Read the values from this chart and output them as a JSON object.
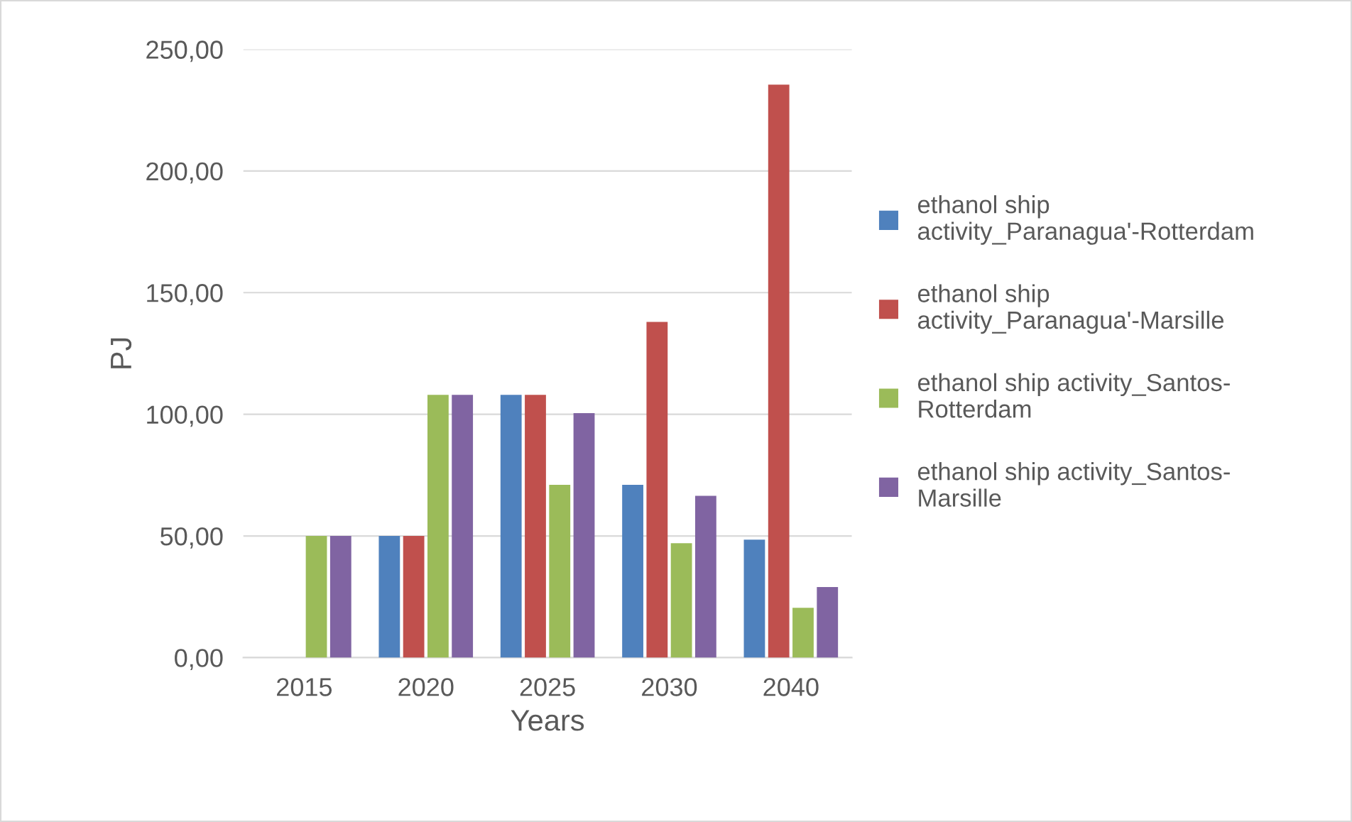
{
  "chart_data": {
    "type": "bar",
    "xlabel": "Years",
    "ylabel": "PJ",
    "categories": [
      "2015",
      "2020",
      "2025",
      "2030",
      "2040"
    ],
    "series": [
      {
        "name": "ethanol ship activity_Paranagua'-Rotterdam",
        "color": "#4f81bd",
        "values": [
          0,
          50,
          108,
          71,
          48.5
        ]
      },
      {
        "name": "ethanol ship activity_Paranagua'-Marsille",
        "color": "#c0504d",
        "values": [
          0,
          50,
          108,
          138,
          235.5
        ]
      },
      {
        "name": "ethanol ship activity_Santos-Rotterdam",
        "color": "#9bbb59",
        "values": [
          50,
          108,
          71,
          47,
          20.5
        ]
      },
      {
        "name": "ethanol ship activity_Santos-Marsille",
        "color": "#8064a2",
        "values": [
          50,
          108,
          100.5,
          66.5,
          29
        ]
      }
    ],
    "ylim": [
      0,
      250
    ],
    "yticks": [
      {
        "value": 0,
        "label": "0,00"
      },
      {
        "value": 50,
        "label": "50,00"
      },
      {
        "value": 100,
        "label": "100,00"
      },
      {
        "value": 150,
        "label": "150,00"
      },
      {
        "value": 200,
        "label": "200,00"
      },
      {
        "value": 250,
        "label": "250,00"
      }
    ],
    "grid": "y",
    "legend": "right"
  }
}
